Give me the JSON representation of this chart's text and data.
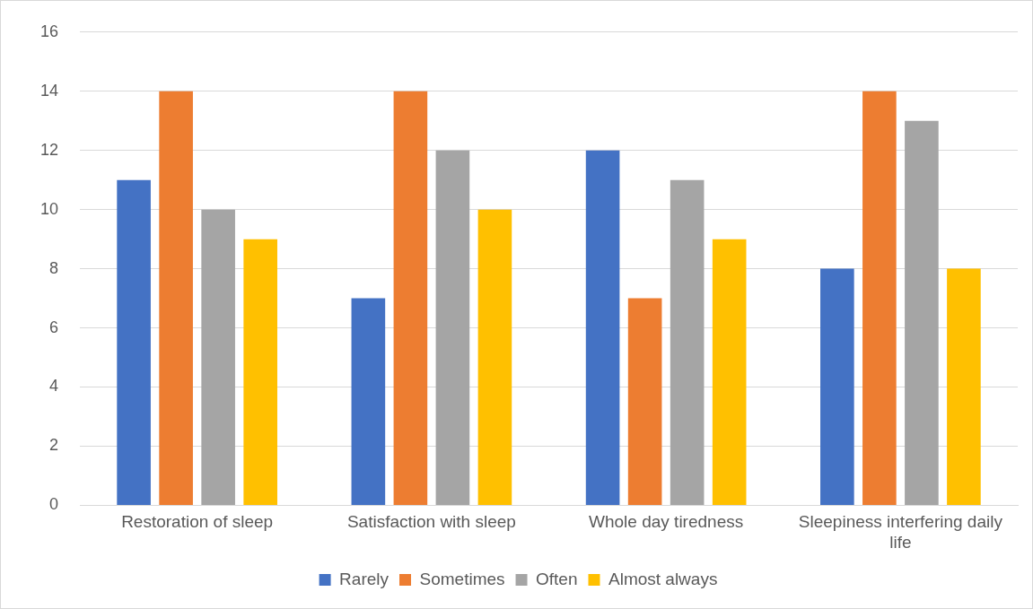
{
  "chart_data": {
    "type": "bar",
    "categories": [
      "Restoration of sleep",
      "Satisfaction with sleep",
      "Whole day tiredness",
      "Sleepiness interfering daily life"
    ],
    "series": [
      {
        "name": "Rarely",
        "color": "#4472c4",
        "values": [
          11,
          7,
          12,
          8
        ]
      },
      {
        "name": "Sometimes",
        "color": "#ed7d31",
        "values": [
          14,
          14,
          7,
          14
        ]
      },
      {
        "name": "Often",
        "color": "#a5a5a5",
        "values": [
          10,
          12,
          11,
          13
        ]
      },
      {
        "name": "Almost always",
        "color": "#ffc000",
        "values": [
          9,
          10,
          9,
          8
        ]
      }
    ],
    "ylim": [
      0,
      16
    ],
    "yticks": [
      0,
      2,
      4,
      6,
      8,
      10,
      12,
      14,
      16
    ],
    "grid": "y",
    "legend": "bottom"
  }
}
